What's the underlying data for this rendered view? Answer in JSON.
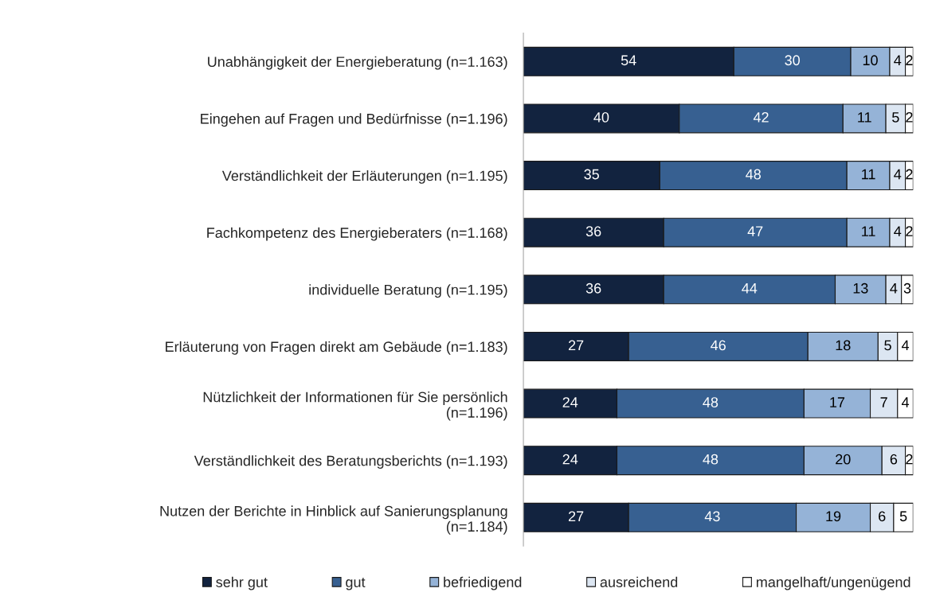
{
  "chart_data": {
    "type": "bar",
    "orientation": "horizontal",
    "stacked": true,
    "data_labels": true,
    "legend": "bottom",
    "grid": false,
    "categories": [
      "Unabhängigkeit der Energieberatung (n=1.163)",
      "Eingehen auf Fragen und Bedürfnisse (n=1.196)",
      "Verständlichkeit der Erläuterungen (n=1.195)",
      "Fachkompetenz des Energieberaters (n=1.168)",
      "individuelle Beratung (n=1.195)",
      "Erläuterung von Fragen direkt am Gebäude (n=1.183)",
      "Nützlichkeit der Informationen für Sie persönlich\n(n=1.196)",
      "Verständlichkeit des Beratungsberichts (n=1.193)",
      "Nutzen der Berichte in Hinblick auf Sanierungsplanung\n(n=1.184)"
    ],
    "series": [
      {
        "name": "sehr gut",
        "color": "#12233f",
        "values": [
          54,
          40,
          35,
          36,
          36,
          27,
          24,
          24,
          27
        ]
      },
      {
        "name": "gut",
        "color": "#376091",
        "values": [
          30,
          42,
          48,
          47,
          44,
          46,
          48,
          48,
          43
        ]
      },
      {
        "name": "befriedigend",
        "color": "#95b3d7",
        "values": [
          10,
          11,
          11,
          11,
          13,
          18,
          17,
          20,
          19
        ]
      },
      {
        "name": "ausreichend",
        "color": "#dce6f2",
        "values": [
          4,
          5,
          4,
          4,
          4,
          5,
          7,
          6,
          6
        ]
      },
      {
        "name": "mangelhaft/ungenügend",
        "color": "#ffffff",
        "values": [
          2,
          2,
          2,
          2,
          3,
          4,
          4,
          2,
          5
        ]
      }
    ]
  }
}
